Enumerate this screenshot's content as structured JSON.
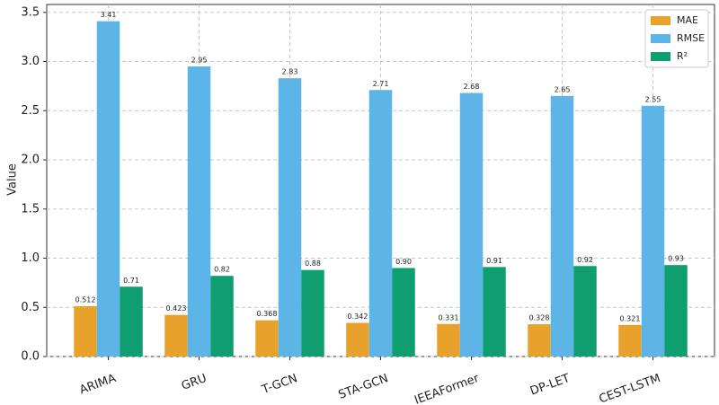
{
  "chart_data": {
    "type": "bar",
    "y_label": "Value",
    "categories": [
      "ARIMA",
      "GRU",
      "T-GCN",
      "STA-GCN",
      "IEEAFormer",
      "DP-LET",
      "CEST-LSTM"
    ],
    "series": [
      {
        "name": "MAE",
        "color": "#e8a12b",
        "values": [
          0.512,
          0.423,
          0.368,
          0.342,
          0.331,
          0.328,
          0.321
        ]
      },
      {
        "name": "RMSE",
        "color": "#5cb5e6",
        "values": [
          3.41,
          2.95,
          2.83,
          2.71,
          2.68,
          2.65,
          2.55
        ]
      },
      {
        "name": "R²",
        "color": "#0f9e6f",
        "values": [
          0.71,
          0.82,
          0.88,
          0.9,
          0.91,
          0.92,
          0.93
        ],
        "value_labels": [
          "0.71",
          "0.82",
          "0.88",
          "0.90",
          "0.91",
          "0.92",
          "0.93"
        ]
      }
    ],
    "ylim": [
      0,
      3.58
    ],
    "yticks": [
      {
        "value": 0,
        "label": "0.0"
      },
      0.5,
      {
        "value": 1,
        "label": "1.0"
      },
      1.5,
      {
        "value": 2,
        "label": "2.0"
      },
      2.5,
      {
        "value": 3,
        "label": "3.0"
      },
      3.5
    ],
    "grid": true,
    "legend": "upper right"
  }
}
